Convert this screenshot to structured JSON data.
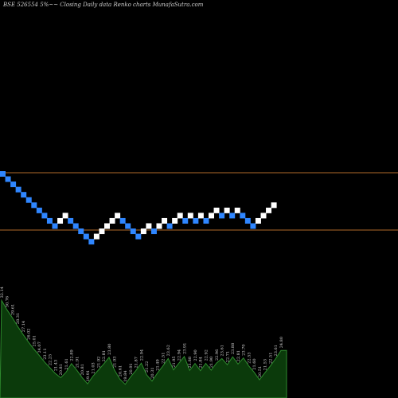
{
  "chart_data": {
    "type": "renko",
    "title": "BSE 526554  5%~~  Closing Daily data  Renko  charts MunafaSutra.com",
    "brick_size_label": "5%",
    "reference_lines": [
      {
        "name": "upper-level-line",
        "color": "#b06a2a"
      },
      {
        "name": "lower-level-line",
        "color": "#b06a2a"
      }
    ],
    "colors": {
      "up": "#ffffff",
      "down": "#2f86ff",
      "volume_fill": "#0b3a0b",
      "volume_line": "#2e8b2e"
    },
    "bricks": [
      {
        "dir": "down",
        "level": 0
      },
      {
        "dir": "down",
        "level": -1
      },
      {
        "dir": "down",
        "level": -2
      },
      {
        "dir": "down",
        "level": -3
      },
      {
        "dir": "down",
        "level": -4
      },
      {
        "dir": "down",
        "level": -5
      },
      {
        "dir": "down",
        "level": -6
      },
      {
        "dir": "down",
        "level": -7
      },
      {
        "dir": "down",
        "level": -8
      },
      {
        "dir": "down",
        "level": -9
      },
      {
        "dir": "down",
        "level": -10
      },
      {
        "dir": "up",
        "level": -9
      },
      {
        "dir": "up",
        "level": -8
      },
      {
        "dir": "down",
        "level": -9
      },
      {
        "dir": "down",
        "level": -10
      },
      {
        "dir": "down",
        "level": -11
      },
      {
        "dir": "down",
        "level": -12
      },
      {
        "dir": "down",
        "level": -13
      },
      {
        "dir": "up",
        "level": -12
      },
      {
        "dir": "up",
        "level": -11
      },
      {
        "dir": "up",
        "level": -10
      },
      {
        "dir": "up",
        "level": -9
      },
      {
        "dir": "up",
        "level": -8
      },
      {
        "dir": "down",
        "level": -9
      },
      {
        "dir": "down",
        "level": -10
      },
      {
        "dir": "down",
        "level": -11
      },
      {
        "dir": "down",
        "level": -12
      },
      {
        "dir": "up",
        "level": -11
      },
      {
        "dir": "up",
        "level": -10
      },
      {
        "dir": "down",
        "level": -11
      },
      {
        "dir": "up",
        "level": -10
      },
      {
        "dir": "up",
        "level": -9
      },
      {
        "dir": "down",
        "level": -10
      },
      {
        "dir": "up",
        "level": -9
      },
      {
        "dir": "up",
        "level": -8
      },
      {
        "dir": "down",
        "level": -9
      },
      {
        "dir": "up",
        "level": -8
      },
      {
        "dir": "down",
        "level": -9
      },
      {
        "dir": "up",
        "level": -8
      },
      {
        "dir": "down",
        "level": -9
      },
      {
        "dir": "up",
        "level": -8
      },
      {
        "dir": "up",
        "level": -7
      },
      {
        "dir": "down",
        "level": -8
      },
      {
        "dir": "up",
        "level": -7
      },
      {
        "dir": "down",
        "level": -8
      },
      {
        "dir": "up",
        "level": -7
      },
      {
        "dir": "down",
        "level": -8
      },
      {
        "dir": "down",
        "level": -9
      },
      {
        "dir": "down",
        "level": -10
      },
      {
        "dir": "up",
        "level": -9
      },
      {
        "dir": "up",
        "level": -8
      },
      {
        "dir": "up",
        "level": -7
      },
      {
        "dir": "up",
        "level": -6
      }
    ],
    "volume_labels": [
      "32.14",
      "30.76",
      "29.61",
      "28.31",
      "27.14",
      "26.02",
      "25.01",
      "24.07",
      "23.11",
      "22.25",
      "21.43",
      "20.81",
      "21.61",
      "22.89",
      "21.91",
      "20.81",
      "19.91",
      "21.03",
      "21.92",
      "22.81",
      "23.80",
      "21.93",
      "20.61",
      "19.84",
      "20.91",
      "21.87",
      "22.94",
      "21.22",
      "20.31",
      "21.49",
      "22.51",
      "23.62",
      "21.95",
      "22.94",
      "23.91",
      "21.88",
      "22.90",
      "21.84",
      "22.92",
      "21.90",
      "22.96",
      "23.61",
      "22.71",
      "23.88",
      "22.81",
      "23.70",
      "22.53",
      "21.60",
      "20.51",
      "21.53",
      "22.51",
      "23.61",
      "24.80"
    ]
  }
}
